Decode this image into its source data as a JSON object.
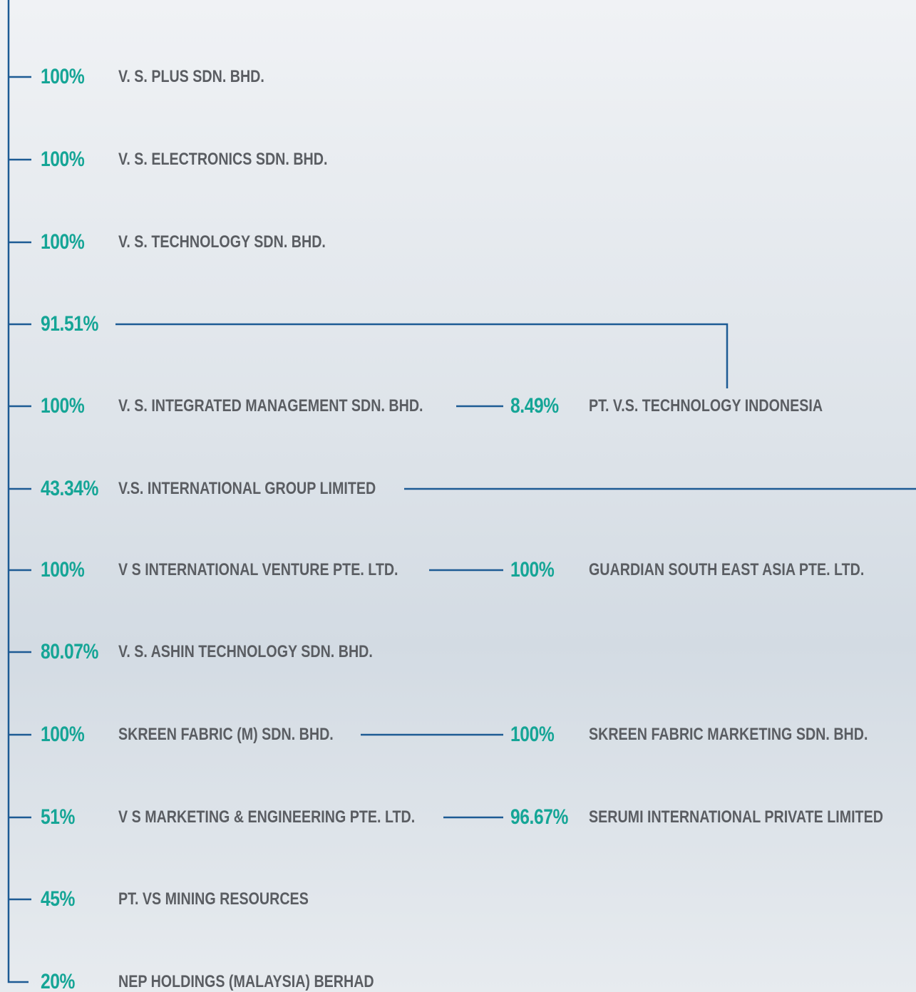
{
  "rows": [
    {
      "percent": "100%",
      "name": "V. S. PLUS SDN. BHD."
    },
    {
      "percent": "100%",
      "name": "V. S. ELECTRONICS SDN. BHD."
    },
    {
      "percent": "100%",
      "name": "V. S. TECHNOLOGY SDN. BHD."
    },
    {
      "percent": "91.51%"
    },
    {
      "percent": "100%",
      "name": "V. S. INTEGRATED MANAGEMENT SDN. BHD.",
      "child": {
        "percent": "8.49%",
        "name": "PT. V.S. TECHNOLOGY INDONESIA"
      }
    },
    {
      "percent": "43.34%",
      "name": "V.S. INTERNATIONAL GROUP LIMITED"
    },
    {
      "percent": "100%",
      "name": "V S INTERNATIONAL VENTURE PTE. LTD.",
      "child": {
        "percent": "100%",
        "name": "GUARDIAN SOUTH EAST ASIA PTE. LTD."
      }
    },
    {
      "percent": "80.07%",
      "name": "V. S. ASHIN TECHNOLOGY SDN. BHD."
    },
    {
      "percent": "100%",
      "name": "SKREEN FABRIC (M) SDN. BHD.",
      "child": {
        "percent": "100%",
        "name": "SKREEN FABRIC MARKETING SDN. BHD."
      }
    },
    {
      "percent": "51%",
      "name": "V S MARKETING & ENGINEERING PTE. LTD.",
      "child": {
        "percent": "96.67%",
        "name": "SERUMI INTERNATIONAL PRIVATE LIMITED"
      }
    },
    {
      "percent": "45%",
      "name": "PT. VS MINING RESOURCES"
    },
    {
      "percent": "20%",
      "name": "NEP HOLDINGS (MALAYSIA) BERHAD"
    }
  ]
}
